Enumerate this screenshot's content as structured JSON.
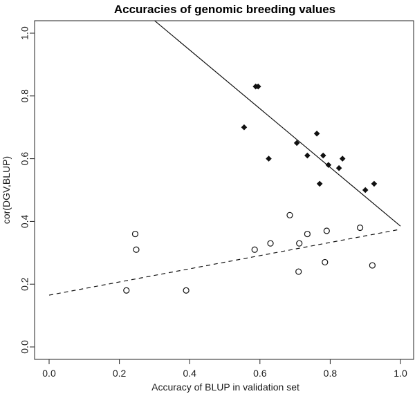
{
  "chart_data": {
    "type": "scatter",
    "title": "Accuracies of genomic breeding values",
    "xlabel": "Accuracy of BLUP in validation set",
    "ylabel": "cor(DGV,BLUP)",
    "xlim": [
      0.0,
      1.0
    ],
    "ylim": [
      0.0,
      1.0
    ],
    "x_ticks": [
      "0.0",
      "0.2",
      "0.4",
      "0.6",
      "0.8",
      "1.0"
    ],
    "y_ticks": [
      "0.0",
      "0.2",
      "0.4",
      "0.6",
      "0.8",
      "1.0"
    ],
    "grid": false,
    "legend": "none",
    "series": [
      {
        "marker": "diamond-filled",
        "points": [
          {
            "x": 0.555,
            "y": 0.7
          },
          {
            "x": 0.588,
            "y": 0.83
          },
          {
            "x": 0.595,
            "y": 0.83
          },
          {
            "x": 0.625,
            "y": 0.6
          },
          {
            "x": 0.705,
            "y": 0.65
          },
          {
            "x": 0.735,
            "y": 0.61
          },
          {
            "x": 0.762,
            "y": 0.68
          },
          {
            "x": 0.77,
            "y": 0.52
          },
          {
            "x": 0.78,
            "y": 0.61
          },
          {
            "x": 0.795,
            "y": 0.58
          },
          {
            "x": 0.825,
            "y": 0.57
          },
          {
            "x": 0.835,
            "y": 0.6
          },
          {
            "x": 0.9,
            "y": 0.5
          },
          {
            "x": 0.925,
            "y": 0.52
          }
        ]
      },
      {
        "marker": "circle-open",
        "points": [
          {
            "x": 0.22,
            "y": 0.18
          },
          {
            "x": 0.245,
            "y": 0.36
          },
          {
            "x": 0.248,
            "y": 0.31
          },
          {
            "x": 0.39,
            "y": 0.18
          },
          {
            "x": 0.585,
            "y": 0.31
          },
          {
            "x": 0.63,
            "y": 0.33
          },
          {
            "x": 0.685,
            "y": 0.42
          },
          {
            "x": 0.71,
            "y": 0.24
          },
          {
            "x": 0.712,
            "y": 0.33
          },
          {
            "x": 0.735,
            "y": 0.36
          },
          {
            "x": 0.785,
            "y": 0.27
          },
          {
            "x": 0.79,
            "y": 0.37
          },
          {
            "x": 0.885,
            "y": 0.38
          },
          {
            "x": 0.92,
            "y": 0.26
          }
        ]
      }
    ],
    "lines": [
      {
        "style": "solid",
        "points": [
          {
            "x": 0.3,
            "y": 1.04
          },
          {
            "x": 1.0,
            "y": 0.385
          }
        ]
      },
      {
        "style": "dashed",
        "points": [
          {
            "x": 0.0,
            "y": 0.165
          },
          {
            "x": 1.0,
            "y": 0.375
          }
        ]
      }
    ]
  }
}
